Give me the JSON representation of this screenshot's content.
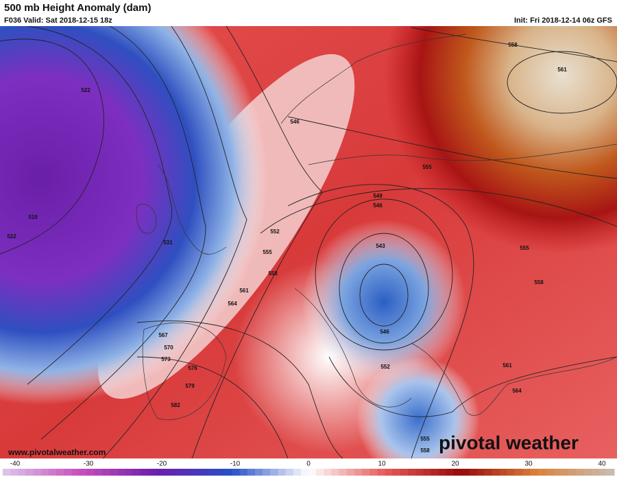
{
  "header": {
    "title": "500 mb Height Anomaly (dam)",
    "valid": "F036 Valid: Sat 2018-12-15 18z",
    "init": "Init: Fri 2018-12-14 06z GFS"
  },
  "contour_labels": [
    522,
    519,
    522,
    531,
    546,
    558,
    561,
    555,
    549,
    546,
    552,
    555,
    543,
    558,
    561,
    564,
    567,
    570,
    573,
    576,
    579,
    582,
    546,
    552,
    555,
    558,
    561,
    564,
    555,
    558
  ],
  "footer": {
    "website": "www.pivotalweather.com",
    "logo": "pivotal weather"
  },
  "colorbar": {
    "range": [
      -40,
      40
    ],
    "ticks": [
      -40,
      -30,
      -20,
      -10,
      0,
      10,
      20,
      30,
      40
    ]
  }
}
